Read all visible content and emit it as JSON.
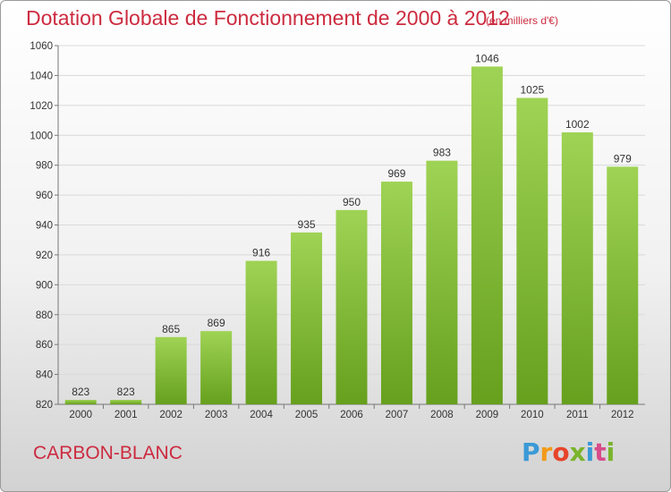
{
  "header": {
    "title": "Dotation Globale de Fonctionnement de 2000 à 2012",
    "unit": "(en milliers d'€)"
  },
  "footer": {
    "place": "CARBON-BLANC",
    "logo": "Proxiti"
  },
  "colors": {
    "bar_light": "#9fd355",
    "bar_dark": "#66a01d",
    "title": "#cc2b3f"
  },
  "chart_data": {
    "type": "bar",
    "title": "Dotation Globale de Fonctionnement de 2000 à 2012",
    "subtitle": "(en milliers d'€)",
    "categories": [
      "2000",
      "2001",
      "2002",
      "2003",
      "2004",
      "2005",
      "2006",
      "2007",
      "2008",
      "2009",
      "2010",
      "2011",
      "2012"
    ],
    "values": [
      823,
      823,
      865,
      869,
      916,
      935,
      950,
      969,
      983,
      1046,
      1025,
      1002,
      979
    ],
    "ylim": [
      820,
      1060
    ],
    "yticks": [
      820,
      840,
      860,
      880,
      900,
      920,
      940,
      960,
      980,
      1000,
      1020,
      1040,
      1060
    ],
    "grid": true,
    "xlabel": "",
    "ylabel": ""
  }
}
